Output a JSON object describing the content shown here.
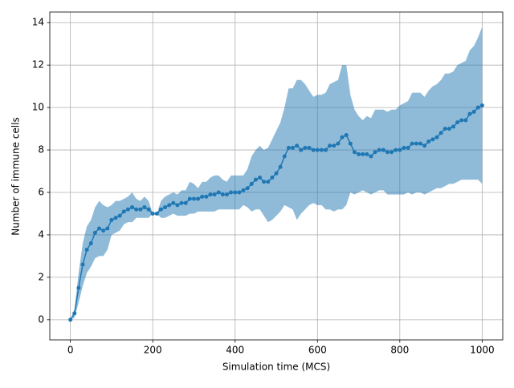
{
  "chart_data": {
    "type": "line",
    "xlabel": "Simulation time (MCS)",
    "ylabel": "Number of immune cells",
    "x": [
      0,
      10,
      20,
      30,
      40,
      50,
      60,
      70,
      80,
      90,
      100,
      110,
      120,
      130,
      140,
      150,
      160,
      170,
      180,
      190,
      200,
      210,
      220,
      230,
      240,
      250,
      260,
      270,
      280,
      290,
      300,
      310,
      320,
      330,
      340,
      350,
      360,
      370,
      380,
      390,
      400,
      410,
      420,
      430,
      440,
      450,
      460,
      470,
      480,
      490,
      500,
      510,
      520,
      530,
      540,
      550,
      560,
      570,
      580,
      590,
      600,
      610,
      620,
      630,
      640,
      650,
      660,
      670,
      680,
      690,
      700,
      710,
      720,
      730,
      740,
      750,
      760,
      770,
      780,
      790,
      800,
      810,
      820,
      830,
      840,
      850,
      860,
      870,
      880,
      890,
      900,
      910,
      920,
      930,
      940,
      950,
      960,
      970,
      980,
      990,
      1000
    ],
    "series": [
      {
        "color": "#1f77b4",
        "values": [
          0,
          0.3,
          1.5,
          2.6,
          3.3,
          3.6,
          4.1,
          4.3,
          4.2,
          4.3,
          4.7,
          4.8,
          4.9,
          5.1,
          5.2,
          5.3,
          5.2,
          5.2,
          5.3,
          5.2,
          5.0,
          5.0,
          5.2,
          5.3,
          5.4,
          5.5,
          5.4,
          5.5,
          5.5,
          5.7,
          5.7,
          5.7,
          5.8,
          5.8,
          5.9,
          5.9,
          6.0,
          5.9,
          5.9,
          6.0,
          6.0,
          6.0,
          6.1,
          6.2,
          6.4,
          6.6,
          6.7,
          6.5,
          6.5,
          6.7,
          6.9,
          7.2,
          7.7,
          8.1,
          8.1,
          8.2,
          8.0,
          8.1,
          8.1,
          8.0,
          8.0,
          8.0,
          8.0,
          8.2,
          8.2,
          8.3,
          8.6,
          8.7,
          8.3,
          7.9,
          7.8,
          7.8,
          7.8,
          7.7,
          7.9,
          8.0,
          8.0,
          7.9,
          7.9,
          8.0,
          8.0,
          8.1,
          8.1,
          8.3,
          8.3,
          8.3,
          8.2,
          8.4,
          8.5,
          8.6,
          8.8,
          9.0,
          9.0,
          9.1,
          9.3,
          9.4,
          9.4,
          9.7,
          9.8,
          10.0,
          10.1
        ]
      }
    ],
    "band": {
      "color": "#1f77b4",
      "opacity": 0.5,
      "upper": [
        0,
        0.5,
        2.2,
        3.6,
        4.4,
        4.7,
        5.3,
        5.6,
        5.4,
        5.3,
        5.4,
        5.6,
        5.6,
        5.7,
        5.8,
        6.0,
        5.7,
        5.6,
        5.8,
        5.6,
        5.0,
        5.0,
        5.6,
        5.8,
        5.9,
        6.0,
        5.9,
        6.1,
        6.1,
        6.5,
        6.4,
        6.2,
        6.5,
        6.5,
        6.7,
        6.8,
        6.8,
        6.6,
        6.5,
        6.8,
        6.8,
        6.8,
        6.8,
        7.1,
        7.7,
        8.0,
        8.2,
        8.0,
        8.1,
        8.5,
        8.9,
        9.3,
        10.0,
        10.9,
        10.9,
        11.3,
        11.3,
        11.1,
        10.8,
        10.5,
        10.6,
        10.6,
        10.7,
        11.1,
        11.2,
        11.3,
        12.0,
        12.0,
        10.6,
        9.9,
        9.6,
        9.4,
        9.6,
        9.5,
        9.9,
        9.9,
        9.9,
        9.8,
        9.9,
        9.9,
        10.1,
        10.2,
        10.3,
        10.7,
        10.7,
        10.7,
        10.5,
        10.8,
        11.0,
        11.1,
        11.3,
        11.6,
        11.6,
        11.7,
        12.0,
        12.1,
        12.2,
        12.7,
        12.9,
        13.3,
        13.8
      ],
      "lower": [
        0,
        0.1,
        0.8,
        1.6,
        2.2,
        2.5,
        2.9,
        3.0,
        3.0,
        3.3,
        4.0,
        4.1,
        4.2,
        4.5,
        4.6,
        4.6,
        4.8,
        4.8,
        4.8,
        4.8,
        5.0,
        5.0,
        4.8,
        4.8,
        4.9,
        5.0,
        4.9,
        4.9,
        4.9,
        5.0,
        5.0,
        5.1,
        5.1,
        5.1,
        5.1,
        5.1,
        5.2,
        5.2,
        5.2,
        5.2,
        5.2,
        5.2,
        5.4,
        5.3,
        5.1,
        5.2,
        5.2,
        4.9,
        4.6,
        4.7,
        4.9,
        5.1,
        5.4,
        5.3,
        5.2,
        4.7,
        5.0,
        5.2,
        5.4,
        5.5,
        5.4,
        5.4,
        5.2,
        5.2,
        5.1,
        5.2,
        5.2,
        5.4,
        6.0,
        5.9,
        6.0,
        6.1,
        6.0,
        5.9,
        6.0,
        6.1,
        6.1,
        5.9,
        5.9,
        5.9,
        5.9,
        5.9,
        6.0,
        5.9,
        6.0,
        6.0,
        5.9,
        6.0,
        6.1,
        6.2,
        6.2,
        6.3,
        6.4,
        6.4,
        6.5,
        6.6,
        6.6,
        6.6,
        6.6,
        6.6,
        6.4
      ]
    },
    "xlim": [
      -50,
      1050
    ],
    "ylim": [
      -0.95,
      14.5
    ],
    "xticks": [
      0,
      200,
      400,
      600,
      800,
      1000
    ],
    "yticks": [
      0,
      2,
      4,
      6,
      8,
      10,
      12,
      14
    ],
    "grid": true
  }
}
